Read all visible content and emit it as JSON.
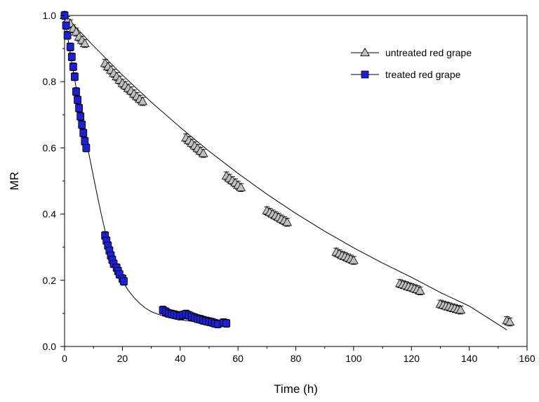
{
  "chart_data": {
    "type": "scatter",
    "title": "",
    "xlabel": "Time (h)",
    "ylabel": "MR",
    "xlim": [
      0,
      160
    ],
    "ylim": [
      0,
      1.0
    ],
    "x_ticks": [
      "0",
      "20",
      "40",
      "60",
      "80",
      "100",
      "120",
      "140",
      "160"
    ],
    "y_ticks": [
      "0.0",
      "0.2",
      "0.4",
      "0.6",
      "0.8",
      "1.0"
    ],
    "grid": false,
    "legend_position": "top-right",
    "series": [
      {
        "name": "untreated red grape",
        "marker": "triangle",
        "color": "#c0c0c0",
        "error": 0.012,
        "points": [
          [
            0,
            1.0
          ],
          [
            1,
            0.985
          ],
          [
            2,
            0.975
          ],
          [
            3,
            0.96
          ],
          [
            4,
            0.95
          ],
          [
            5,
            0.935
          ],
          [
            6,
            0.925
          ],
          [
            7,
            0.915
          ],
          [
            14,
            0.855
          ],
          [
            15,
            0.845
          ],
          [
            16,
            0.835
          ],
          [
            17,
            0.825
          ],
          [
            18,
            0.815
          ],
          [
            19,
            0.805
          ],
          [
            20,
            0.795
          ],
          [
            21,
            0.788
          ],
          [
            22,
            0.78
          ],
          [
            23,
            0.772
          ],
          [
            24,
            0.763
          ],
          [
            25,
            0.755
          ],
          [
            26,
            0.747
          ],
          [
            27,
            0.74
          ],
          [
            42,
            0.63
          ],
          [
            43,
            0.622
          ],
          [
            44,
            0.614
          ],
          [
            45,
            0.606
          ],
          [
            46,
            0.598
          ],
          [
            47,
            0.59
          ],
          [
            48,
            0.583
          ],
          [
            56,
            0.515
          ],
          [
            57,
            0.508
          ],
          [
            58,
            0.501
          ],
          [
            59,
            0.494
          ],
          [
            60,
            0.487
          ],
          [
            61,
            0.48
          ],
          [
            70,
            0.41
          ],
          [
            71,
            0.405
          ],
          [
            72,
            0.4
          ],
          [
            73,
            0.395
          ],
          [
            74,
            0.39
          ],
          [
            75,
            0.385
          ],
          [
            76,
            0.38
          ],
          [
            77,
            0.375
          ],
          [
            94,
            0.285
          ],
          [
            95,
            0.28
          ],
          [
            96,
            0.275
          ],
          [
            97,
            0.272
          ],
          [
            98,
            0.268
          ],
          [
            99,
            0.264
          ],
          [
            100,
            0.26
          ],
          [
            116,
            0.19
          ],
          [
            117,
            0.187
          ],
          [
            118,
            0.184
          ],
          [
            119,
            0.181
          ],
          [
            120,
            0.178
          ],
          [
            121,
            0.175
          ],
          [
            122,
            0.172
          ],
          [
            123,
            0.168
          ],
          [
            130,
            0.128
          ],
          [
            131,
            0.125
          ],
          [
            132,
            0.122
          ],
          [
            133,
            0.12
          ],
          [
            134,
            0.117
          ],
          [
            135,
            0.115
          ],
          [
            136,
            0.112
          ],
          [
            137,
            0.11
          ],
          [
            153,
            0.078
          ],
          [
            154,
            0.074
          ]
        ],
        "fit": [
          [
            0,
            1.0
          ],
          [
            10,
            0.908
          ],
          [
            20,
            0.82
          ],
          [
            30,
            0.738
          ],
          [
            40,
            0.662
          ],
          [
            50,
            0.59
          ],
          [
            60,
            0.523
          ],
          [
            70,
            0.46
          ],
          [
            80,
            0.402
          ],
          [
            90,
            0.348
          ],
          [
            100,
            0.298
          ],
          [
            110,
            0.252
          ],
          [
            120,
            0.209
          ],
          [
            130,
            0.163
          ],
          [
            140,
            0.122
          ],
          [
            153,
            0.05
          ]
        ]
      },
      {
        "name": "treated red grape",
        "marker": "square",
        "color": "#1f1fd6",
        "error": 0.012,
        "points": [
          [
            0,
            1.0
          ],
          [
            0.5,
            0.97
          ],
          [
            1,
            0.94
          ],
          [
            2,
            0.905
          ],
          [
            2.5,
            0.875
          ],
          [
            3,
            0.845
          ],
          [
            3.5,
            0.815
          ],
          [
            4,
            0.77
          ],
          [
            4.5,
            0.745
          ],
          [
            5,
            0.72
          ],
          [
            5.5,
            0.695
          ],
          [
            6,
            0.67
          ],
          [
            6.5,
            0.645
          ],
          [
            7,
            0.62
          ],
          [
            7.5,
            0.6
          ],
          [
            14,
            0.335
          ],
          [
            14.5,
            0.32
          ],
          [
            15,
            0.305
          ],
          [
            15.5,
            0.29
          ],
          [
            16,
            0.275
          ],
          [
            16.5,
            0.262
          ],
          [
            17,
            0.25
          ],
          [
            18,
            0.238
          ],
          [
            18.5,
            0.228
          ],
          [
            19,
            0.218
          ],
          [
            20,
            0.205
          ],
          [
            20.5,
            0.197
          ],
          [
            34,
            0.11
          ],
          [
            35,
            0.105
          ],
          [
            36,
            0.1
          ],
          [
            37,
            0.098
          ],
          [
            38,
            0.096
          ],
          [
            39,
            0.094
          ],
          [
            40,
            0.092
          ],
          [
            41,
            0.095
          ],
          [
            42,
            0.098
          ],
          [
            43,
            0.094
          ],
          [
            44,
            0.09
          ],
          [
            45,
            0.087
          ],
          [
            46,
            0.084
          ],
          [
            47,
            0.082
          ],
          [
            48,
            0.079
          ],
          [
            49,
            0.077
          ],
          [
            50,
            0.075
          ],
          [
            51,
            0.073
          ],
          [
            52,
            0.07
          ],
          [
            53,
            0.068
          ],
          [
            55,
            0.072
          ],
          [
            56,
            0.07
          ]
        ],
        "fit": [
          [
            0,
            1.0
          ],
          [
            1,
            0.94
          ],
          [
            2,
            0.885
          ],
          [
            3,
            0.832
          ],
          [
            4,
            0.782
          ],
          [
            5,
            0.734
          ],
          [
            6,
            0.688
          ],
          [
            7,
            0.644
          ],
          [
            8,
            0.6
          ],
          [
            9,
            0.556
          ],
          [
            10,
            0.513
          ],
          [
            11,
            0.47
          ],
          [
            12,
            0.428
          ],
          [
            13,
            0.388
          ],
          [
            14,
            0.35
          ],
          [
            15,
            0.316
          ],
          [
            16,
            0.285
          ],
          [
            17,
            0.258
          ],
          [
            18,
            0.235
          ],
          [
            19,
            0.215
          ],
          [
            20,
            0.198
          ],
          [
            22,
            0.17
          ],
          [
            24,
            0.148
          ],
          [
            26,
            0.13
          ],
          [
            28,
            0.116
          ],
          [
            30,
            0.105
          ],
          [
            34,
            0.092
          ],
          [
            38,
            0.084
          ],
          [
            42,
            0.078
          ],
          [
            46,
            0.074
          ],
          [
            50,
            0.071
          ],
          [
            56,
            0.068
          ]
        ]
      }
    ]
  }
}
